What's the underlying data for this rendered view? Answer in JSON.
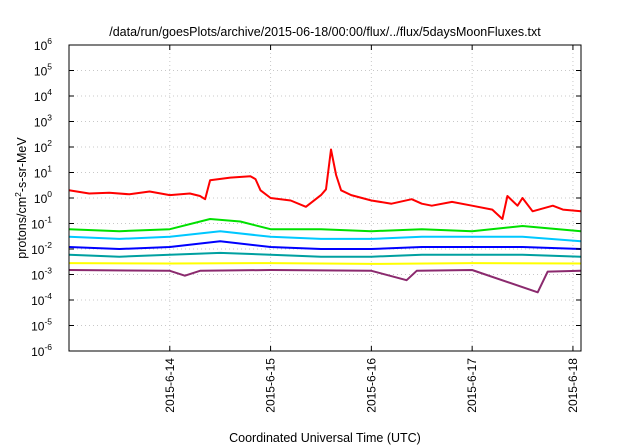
{
  "chart_data": {
    "type": "line",
    "title": "/data/run/goesPlots/archive/2015-06-18/00:00/flux/../flux/5daysMoonFluxes.txt",
    "xlabel": "Coordinated Universal Time (UTC)",
    "ylabel": {
      "base": "protons/cm",
      "sup": "2",
      "rest": "-s-sr-MeV"
    },
    "xlim": [
      13.0,
      18.08
    ],
    "x_unit_note": "day of June 2015",
    "ylim_exp": [
      -6,
      6
    ],
    "y_scale": "log",
    "grid": true,
    "legend": "none",
    "x_ticks": [
      {
        "x": 14,
        "label": "2015-6-14"
      },
      {
        "x": 15,
        "label": "2015-6-15"
      },
      {
        "x": 16,
        "label": "2015-6-16"
      },
      {
        "x": 17,
        "label": "2015-6-17"
      },
      {
        "x": 18,
        "label": "2015-6-18"
      }
    ],
    "y_ticks": [
      {
        "exp": -6,
        "base": "10",
        "sup": "-6"
      },
      {
        "exp": -5,
        "base": "10",
        "sup": "-5"
      },
      {
        "exp": -4,
        "base": "10",
        "sup": "-4"
      },
      {
        "exp": -3,
        "base": "10",
        "sup": "-3"
      },
      {
        "exp": -2,
        "base": "10",
        "sup": "-2"
      },
      {
        "exp": -1,
        "base": "10",
        "sup": "-1"
      },
      {
        "exp": 0,
        "base": "10",
        "sup": "0"
      },
      {
        "exp": 1,
        "base": "10",
        "sup": "1"
      },
      {
        "exp": 2,
        "base": "10",
        "sup": "2"
      },
      {
        "exp": 3,
        "base": "10",
        "sup": "3"
      },
      {
        "exp": 4,
        "base": "10",
        "sup": "4"
      },
      {
        "exp": 5,
        "base": "10",
        "sup": "5"
      },
      {
        "exp": 6,
        "base": "10",
        "sup": "6"
      }
    ],
    "series": [
      {
        "color": "#ff0000",
        "points": [
          [
            13.0,
            2.0
          ],
          [
            13.2,
            1.5
          ],
          [
            13.4,
            1.6
          ],
          [
            13.6,
            1.4
          ],
          [
            13.8,
            1.8
          ],
          [
            14.0,
            1.3
          ],
          [
            14.2,
            1.5
          ],
          [
            14.3,
            1.2
          ],
          [
            14.35,
            0.9
          ],
          [
            14.4,
            5.0
          ],
          [
            14.6,
            6.3
          ],
          [
            14.8,
            7.1
          ],
          [
            14.85,
            5.5
          ],
          [
            14.9,
            2.0
          ],
          [
            15.0,
            1.0
          ],
          [
            15.2,
            0.8
          ],
          [
            15.35,
            0.45
          ],
          [
            15.5,
            1.3
          ],
          [
            15.55,
            2.2
          ],
          [
            15.6,
            80
          ],
          [
            15.65,
            8
          ],
          [
            15.7,
            2.0
          ],
          [
            15.8,
            1.3
          ],
          [
            16.0,
            0.8
          ],
          [
            16.2,
            0.6
          ],
          [
            16.4,
            0.9
          ],
          [
            16.5,
            0.6
          ],
          [
            16.6,
            0.5
          ],
          [
            16.8,
            0.7
          ],
          [
            17.0,
            0.5
          ],
          [
            17.2,
            0.35
          ],
          [
            17.3,
            0.15
          ],
          [
            17.35,
            1.2
          ],
          [
            17.45,
            0.5
          ],
          [
            17.5,
            1.0
          ],
          [
            17.6,
            0.3
          ],
          [
            17.8,
            0.5
          ],
          [
            17.9,
            0.35
          ],
          [
            18.08,
            0.3
          ]
        ]
      },
      {
        "color": "#00e000",
        "points": [
          [
            13.0,
            0.06
          ],
          [
            13.5,
            0.05
          ],
          [
            14.0,
            0.06
          ],
          [
            14.4,
            0.15
          ],
          [
            14.7,
            0.12
          ],
          [
            15.0,
            0.06
          ],
          [
            15.5,
            0.06
          ],
          [
            16.0,
            0.05
          ],
          [
            16.5,
            0.06
          ],
          [
            17.0,
            0.05
          ],
          [
            17.5,
            0.08
          ],
          [
            18.08,
            0.05
          ]
        ]
      },
      {
        "color": "#00c8ff",
        "points": [
          [
            13.0,
            0.03
          ],
          [
            13.5,
            0.025
          ],
          [
            14.0,
            0.03
          ],
          [
            14.5,
            0.05
          ],
          [
            15.0,
            0.03
          ],
          [
            15.5,
            0.025
          ],
          [
            16.0,
            0.025
          ],
          [
            16.5,
            0.03
          ],
          [
            17.0,
            0.03
          ],
          [
            17.5,
            0.03
          ],
          [
            18.08,
            0.02
          ]
        ]
      },
      {
        "color": "#0000ff",
        "points": [
          [
            13.0,
            0.012
          ],
          [
            13.5,
            0.01
          ],
          [
            14.0,
            0.012
          ],
          [
            14.5,
            0.02
          ],
          [
            15.0,
            0.012
          ],
          [
            15.5,
            0.01
          ],
          [
            16.0,
            0.01
          ],
          [
            16.5,
            0.012
          ],
          [
            17.0,
            0.012
          ],
          [
            17.5,
            0.012
          ],
          [
            18.08,
            0.01
          ]
        ]
      },
      {
        "color": "#00a0a0",
        "points": [
          [
            13.0,
            0.006
          ],
          [
            13.5,
            0.005
          ],
          [
            14.0,
            0.006
          ],
          [
            14.5,
            0.007
          ],
          [
            15.0,
            0.006
          ],
          [
            15.5,
            0.005
          ],
          [
            16.0,
            0.005
          ],
          [
            16.5,
            0.006
          ],
          [
            17.0,
            0.006
          ],
          [
            17.5,
            0.006
          ],
          [
            18.08,
            0.005
          ]
        ]
      },
      {
        "color": "#ffff00",
        "points": [
          [
            13.0,
            0.0028
          ],
          [
            14.0,
            0.0027
          ],
          [
            15.0,
            0.0028
          ],
          [
            16.0,
            0.0026
          ],
          [
            17.0,
            0.0028
          ],
          [
            18.08,
            0.0027
          ]
        ]
      },
      {
        "color": "#8b2a6e",
        "points": [
          [
            13.0,
            0.0015
          ],
          [
            14.0,
            0.0014
          ],
          [
            14.15,
            0.0009
          ],
          [
            14.3,
            0.0014
          ],
          [
            15.0,
            0.0015
          ],
          [
            16.0,
            0.0014
          ],
          [
            16.35,
            0.0006
          ],
          [
            16.45,
            0.0014
          ],
          [
            17.0,
            0.0015
          ],
          [
            17.65,
            0.0002
          ],
          [
            17.75,
            0.0013
          ],
          [
            18.08,
            0.0014
          ]
        ]
      }
    ]
  }
}
